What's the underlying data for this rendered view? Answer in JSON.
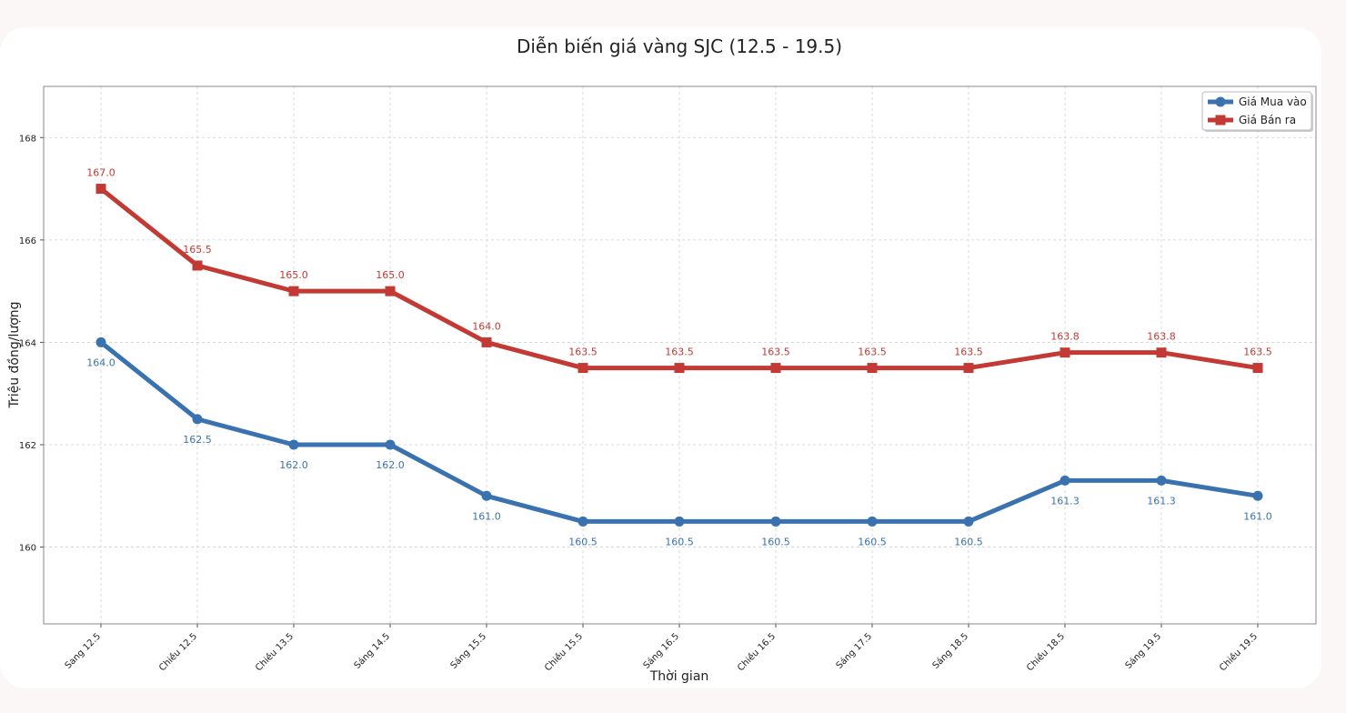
{
  "chart_data": {
    "type": "line",
    "title": "Diễn biến giá vàng SJC (12.5 - 19.5)",
    "xlabel": "Thời gian",
    "ylabel": "Triệu đồng/lượng",
    "ylim": [
      158.5,
      169
    ],
    "yticks": [
      160,
      162,
      164,
      166,
      168
    ],
    "grid": true,
    "legend_position": "top-right",
    "categories": [
      "Sang 12.5",
      "Chiều 12.5",
      "Chiều 13.5",
      "Sáng 14.5",
      "Sáng 15.5",
      "Chiều 15.5",
      "Sáng 16.5",
      "Chiều 16.5",
      "Sáng 17.5",
      "Sáng 18.5",
      "Chiều 18.5",
      "Sáng 19.5",
      "Chiều 19.5"
    ],
    "series": [
      {
        "name": "Giá Mua vào",
        "color": "#3a72b0",
        "marker": "circle",
        "values": [
          164.0,
          162.5,
          162.0,
          162.0,
          161.0,
          160.5,
          160.5,
          160.5,
          160.5,
          160.5,
          161.3,
          161.3,
          161.0
        ],
        "labels": [
          "164.0",
          "162.5",
          "162.0",
          "162.0",
          "161.0",
          "160.5",
          "160.5",
          "160.5",
          "160.5",
          "160.5",
          "161.3",
          "161.3",
          "161.0"
        ]
      },
      {
        "name": "Giá Bán ra",
        "color": "#c23a33",
        "marker": "square",
        "values": [
          167.0,
          165.5,
          165.0,
          165.0,
          164.0,
          163.5,
          163.5,
          163.5,
          163.5,
          163.5,
          163.8,
          163.8,
          163.5
        ],
        "labels": [
          "167.0",
          "165.5",
          "165.0",
          "165.0",
          "164.0",
          "163.5",
          "163.5",
          "163.5",
          "163.5",
          "163.5",
          "163.8",
          "163.8",
          "163.5"
        ]
      }
    ]
  }
}
